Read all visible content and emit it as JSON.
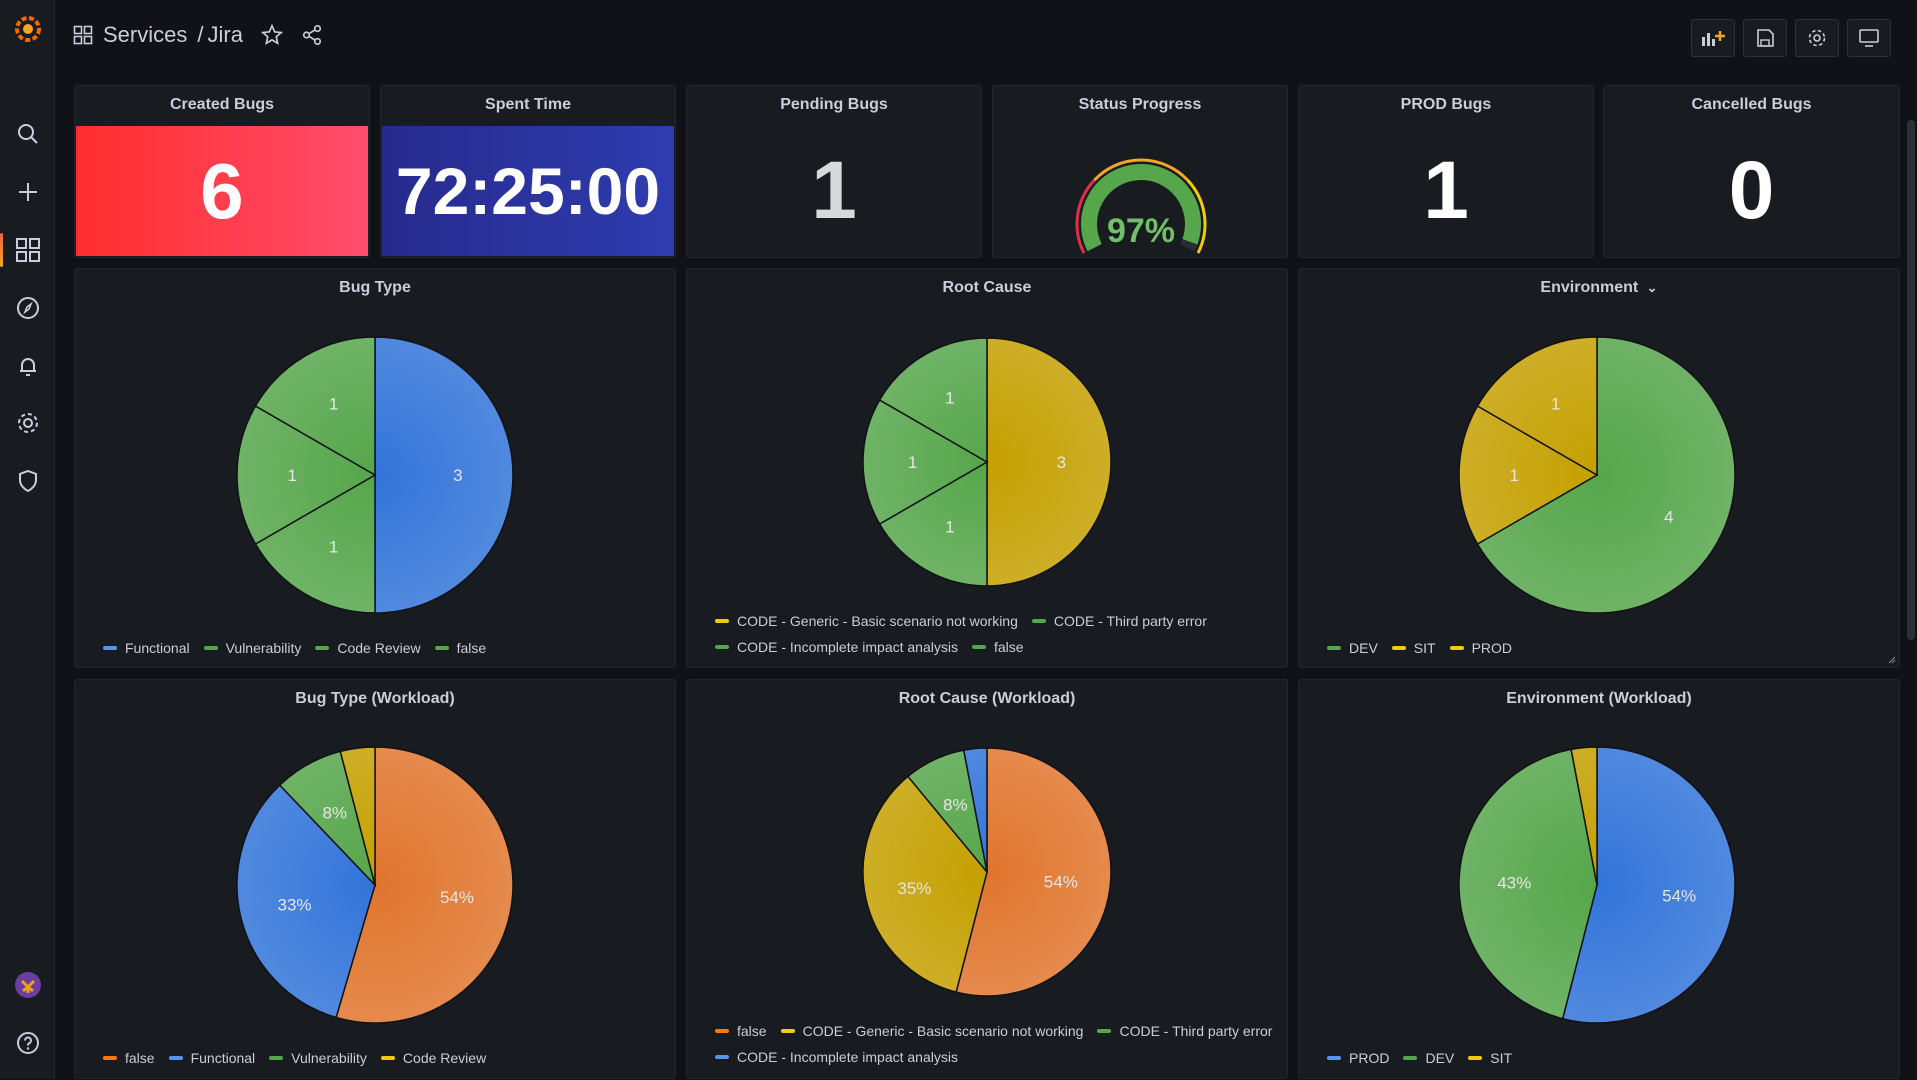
{
  "breadcrumb": {
    "folder": "Services",
    "separator": "/",
    "dashboard": "Jira"
  },
  "colors": {
    "green": "#56a64b",
    "blue": "#3274d9",
    "yellow": "#c4a000",
    "orange": "#e0752d",
    "red": "#ff2e2e",
    "navy": "#2a2f9e"
  },
  "stats": [
    {
      "title": "Created Bugs",
      "value": "6"
    },
    {
      "title": "Spent Time",
      "value": "72:25:00"
    },
    {
      "title": "Pending Bugs",
      "value": "1"
    },
    {
      "title": "Status Progress",
      "value": "97%",
      "gauge_fraction": 0.97
    },
    {
      "title": "PROD Bugs",
      "value": "1"
    },
    {
      "title": "Cancelled Bugs",
      "value": "0"
    }
  ],
  "chart_data": [
    {
      "type": "pie",
      "title": "Bug Type",
      "slices": [
        {
          "label": "Functional",
          "value": 3,
          "display": "3",
          "color": "#3274d9"
        },
        {
          "label": "Code Review",
          "value": 1,
          "display": "1",
          "color": "#56a64b"
        },
        {
          "label": "Vulnerability",
          "value": 1,
          "display": "1",
          "color": "#56a64b"
        },
        {
          "label": "false",
          "value": 1,
          "display": "1",
          "color": "#56a64b"
        }
      ],
      "legend": [
        {
          "label": "Functional",
          "color": "#5794f2"
        },
        {
          "label": "Vulnerability",
          "color": "#56a64b"
        },
        {
          "label": "Code Review",
          "color": "#56a64b"
        },
        {
          "label": "false",
          "color": "#56a64b"
        }
      ]
    },
    {
      "type": "pie",
      "title": "Root Cause",
      "slices": [
        {
          "label": "CODE - Generic - Basic scenario not working",
          "value": 3,
          "display": "3",
          "color": "#c4a000"
        },
        {
          "label": "CODE - Third party error",
          "value": 1,
          "display": "1",
          "color": "#56a64b"
        },
        {
          "label": "CODE - Incomplete impact analysis",
          "value": 1,
          "display": "1",
          "color": "#56a64b"
        },
        {
          "label": "false",
          "value": 1,
          "display": "1",
          "color": "#56a64b"
        }
      ],
      "legend": [
        {
          "label": "CODE - Generic - Basic scenario not working",
          "color": "#f2cc0c"
        },
        {
          "label": "CODE - Third party error",
          "color": "#56a64b"
        },
        {
          "label": "CODE - Incomplete impact analysis",
          "color": "#56a64b"
        },
        {
          "label": "false",
          "color": "#56a64b"
        }
      ]
    },
    {
      "type": "pie",
      "title": "Environment",
      "title_menu": "⌄",
      "slices": [
        {
          "label": "DEV",
          "value": 4,
          "display": "4",
          "color": "#56a64b"
        },
        {
          "label": "SIT",
          "value": 1,
          "display": "1",
          "color": "#c4a000"
        },
        {
          "label": "PROD",
          "value": 1,
          "display": "1",
          "color": "#c4a000"
        }
      ],
      "legend": [
        {
          "label": "DEV",
          "color": "#56a64b"
        },
        {
          "label": "SIT",
          "color": "#f2cc0c"
        },
        {
          "label": "PROD",
          "color": "#f2cc0c"
        }
      ]
    },
    {
      "type": "pie",
      "title": "Bug Type (Workload)",
      "slices": [
        {
          "label": "false",
          "value": 54,
          "display": "54%",
          "color": "#e0752d"
        },
        {
          "label": "Functional",
          "value": 33,
          "display": "33%",
          "color": "#3274d9"
        },
        {
          "label": "Vulnerability",
          "value": 8,
          "display": "8%",
          "color": "#56a64b"
        },
        {
          "label": "Code Review",
          "value": 4,
          "display": "",
          "color": "#c4a000"
        }
      ],
      "legend": [
        {
          "label": "false",
          "color": "#ff780a"
        },
        {
          "label": "Functional",
          "color": "#5794f2"
        },
        {
          "label": "Vulnerability",
          "color": "#56a64b"
        },
        {
          "label": "Code Review",
          "color": "#f2cc0c"
        }
      ]
    },
    {
      "type": "pie",
      "title": "Root Cause (Workload)",
      "slices": [
        {
          "label": "false",
          "value": 54,
          "display": "54%",
          "color": "#e0752d"
        },
        {
          "label": "CODE - Generic - Basic scenario not working",
          "value": 35,
          "display": "35%",
          "color": "#c4a000"
        },
        {
          "label": "CODE - Third party error",
          "value": 8,
          "display": "8%",
          "color": "#56a64b"
        },
        {
          "label": "CODE - Incomplete impact analysis",
          "value": 3,
          "display": "",
          "color": "#3274d9"
        }
      ],
      "legend": [
        {
          "label": "false",
          "color": "#ff780a"
        },
        {
          "label": "CODE - Generic - Basic scenario not working",
          "color": "#f2cc0c"
        },
        {
          "label": "CODE - Third party error",
          "color": "#56a64b"
        },
        {
          "label": "CODE - Incomplete impact analysis",
          "color": "#5794f2"
        }
      ]
    },
    {
      "type": "pie",
      "title": "Environment (Workload)",
      "slices": [
        {
          "label": "PROD",
          "value": 54,
          "display": "54%",
          "color": "#3274d9"
        },
        {
          "label": "DEV",
          "value": 43,
          "display": "43%",
          "color": "#56a64b"
        },
        {
          "label": "SIT",
          "value": 3,
          "display": "",
          "color": "#c4a000"
        }
      ],
      "legend": [
        {
          "label": "PROD",
          "color": "#5794f2"
        },
        {
          "label": "DEV",
          "color": "#56a64b"
        },
        {
          "label": "SIT",
          "color": "#f2cc0c"
        }
      ]
    }
  ]
}
